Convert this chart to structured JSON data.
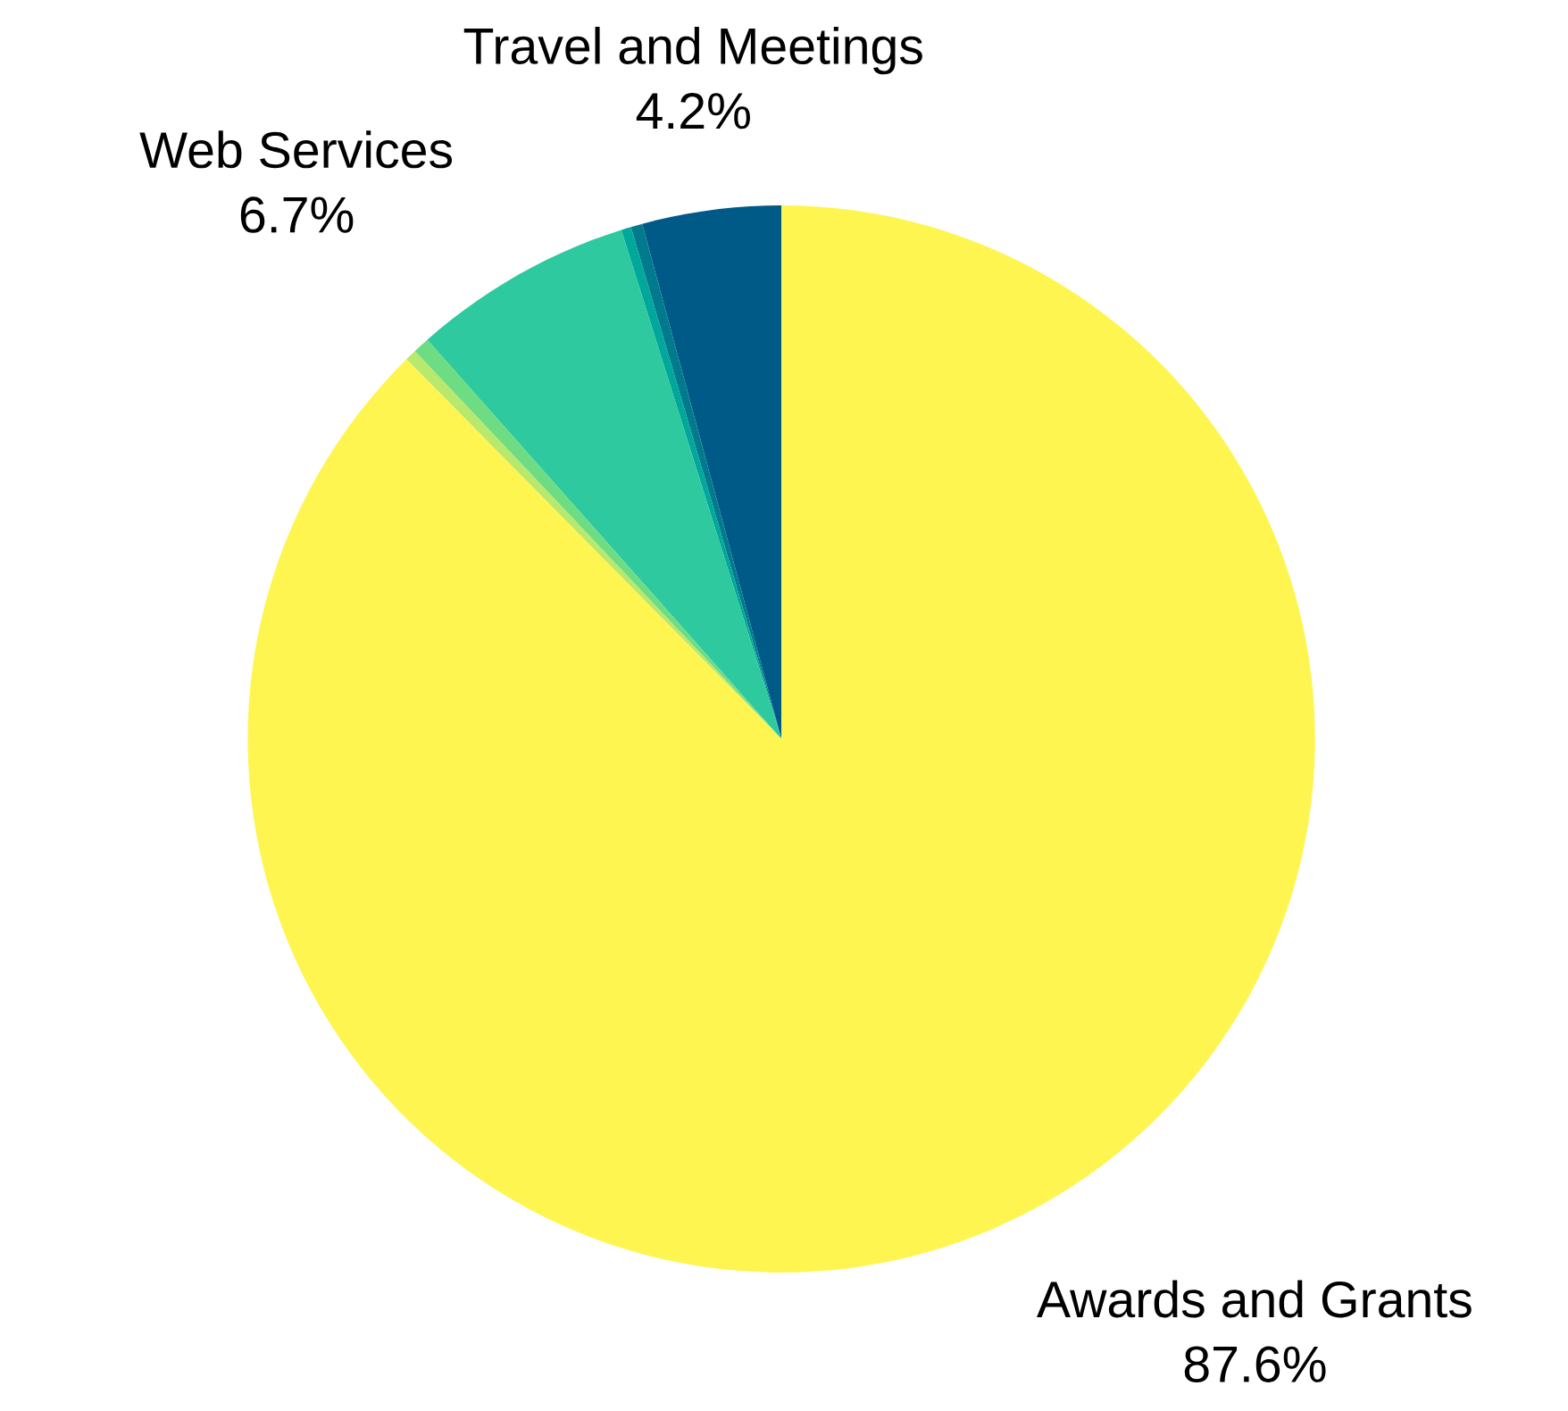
{
  "chart_data": {
    "type": "pie",
    "categories": [
      "Travel and Meetings",
      null,
      null,
      "Web Services",
      null,
      null,
      "Awards and Grants"
    ],
    "values": [
      4.2,
      0.35,
      0.3,
      6.7,
      0.5,
      0.35,
      87.6
    ],
    "value_labels": [
      "4.2%",
      null,
      null,
      "6.7%",
      null,
      null,
      "87.6%"
    ],
    "colors": [
      "#005a87",
      "#007a8c",
      "#00a79a",
      "#2ec99e",
      "#6ddc83",
      "#b8e86c",
      "#fef551"
    ]
  }
}
